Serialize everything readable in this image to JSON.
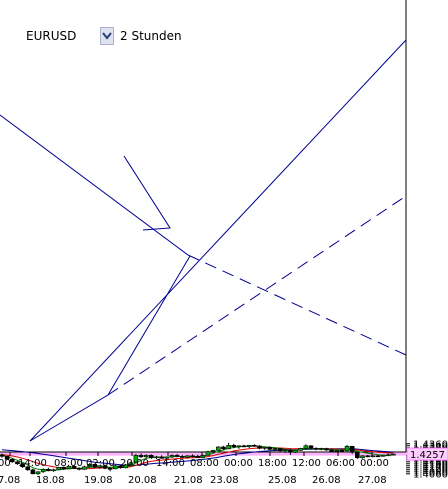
{
  "toolbar": {
    "symbol": "EURUSD",
    "timeframe": "2 Stunden",
    "dropdown_icon": "chevron-down-icon"
  },
  "colors": {
    "bull": "#00aa00",
    "bear": "#000000",
    "ma_fast": "#008000",
    "ma_mid": "#e00000",
    "ma_slow": "#000090",
    "trend": "#000090",
    "price_line": "#ff80ff",
    "price_tag_bg": "#ffccff"
  },
  "chart_data": {
    "type": "candlestick",
    "ylim": [
      1.4048,
      1.4378
    ],
    "grid": false,
    "y_ticks": [
      "1.4360",
      "1.4340",
      "1.4320",
      "1.4300",
      "1.4280",
      "1.4240",
      "1.4220",
      "1.4200",
      "1.4180",
      "1.4160",
      "1.4140",
      "1.4120",
      "1.4100",
      "1.4080",
      "1.4060"
    ],
    "current_price": "1.4257",
    "x_time_labels": [
      "00",
      "14:00",
      "08:00",
      "02:00",
      "20:00",
      "14:00",
      "08:00",
      "00:00",
      "18:00",
      "12:00",
      "06:00",
      "00:00"
    ],
    "x_date_labels": [
      "7.08",
      "18.08",
      "19.08",
      "20.08",
      "21.08",
      "23.08",
      "25.08",
      "26.08",
      "27.08"
    ],
    "candles": [
      [
        1.425,
        1.4262,
        1.422,
        1.4235
      ],
      [
        1.4235,
        1.424,
        1.42,
        1.4205
      ],
      [
        1.4205,
        1.4215,
        1.417,
        1.418
      ],
      [
        1.418,
        1.419,
        1.415,
        1.416
      ],
      [
        1.416,
        1.417,
        1.412,
        1.413
      ],
      [
        1.413,
        1.414,
        1.409,
        1.41
      ],
      [
        1.41,
        1.411,
        1.4055,
        1.406
      ],
      [
        1.406,
        1.4085,
        1.405,
        1.408
      ],
      [
        1.408,
        1.4115,
        1.407,
        1.4105
      ],
      [
        1.4105,
        1.412,
        1.4085,
        1.409
      ],
      [
        1.409,
        1.411,
        1.408,
        1.41
      ],
      [
        1.41,
        1.413,
        1.4095,
        1.4125
      ],
      [
        1.4125,
        1.4135,
        1.41,
        1.411
      ],
      [
        1.411,
        1.414,
        1.4105,
        1.4135
      ],
      [
        1.4135,
        1.415,
        1.411,
        1.4115
      ],
      [
        1.4115,
        1.4125,
        1.4095,
        1.4105
      ],
      [
        1.4105,
        1.414,
        1.41,
        1.413
      ],
      [
        1.413,
        1.4165,
        1.412,
        1.4155
      ],
      [
        1.4155,
        1.416,
        1.4115,
        1.4125
      ],
      [
        1.4125,
        1.4145,
        1.411,
        1.414
      ],
      [
        1.414,
        1.415,
        1.4105,
        1.4115
      ],
      [
        1.4115,
        1.4125,
        1.4085,
        1.411
      ],
      [
        1.411,
        1.415,
        1.4105,
        1.414
      ],
      [
        1.414,
        1.415,
        1.4112,
        1.412
      ],
      [
        1.412,
        1.416,
        1.4115,
        1.415
      ],
      [
        1.415,
        1.418,
        1.414,
        1.417
      ],
      [
        1.417,
        1.426,
        1.4165,
        1.4245
      ],
      [
        1.4245,
        1.4265,
        1.422,
        1.423
      ],
      [
        1.423,
        1.4255,
        1.4215,
        1.4245
      ],
      [
        1.4245,
        1.4255,
        1.421,
        1.422
      ],
      [
        1.422,
        1.424,
        1.4205,
        1.423
      ],
      [
        1.423,
        1.4245,
        1.421,
        1.4215
      ],
      [
        1.4215,
        1.4235,
        1.4208,
        1.4228
      ],
      [
        1.4228,
        1.4255,
        1.422,
        1.4245
      ],
      [
        1.4245,
        1.4258,
        1.4225,
        1.4235
      ],
      [
        1.4235,
        1.425,
        1.4215,
        1.4225
      ],
      [
        1.4225,
        1.4245,
        1.4212,
        1.424
      ],
      [
        1.424,
        1.4255,
        1.423,
        1.4235
      ],
      [
        1.4235,
        1.425,
        1.4218,
        1.4222
      ],
      [
        1.4222,
        1.425,
        1.4215,
        1.4245
      ],
      [
        1.4245,
        1.429,
        1.424,
        1.4282
      ],
      [
        1.4282,
        1.43,
        1.4265,
        1.4295
      ],
      [
        1.4295,
        1.4335,
        1.429,
        1.4328
      ],
      [
        1.4328,
        1.434,
        1.43,
        1.431
      ],
      [
        1.431,
        1.437,
        1.4305,
        1.4345
      ],
      [
        1.4345,
        1.436,
        1.432,
        1.433
      ],
      [
        1.433,
        1.4345,
        1.431,
        1.434
      ],
      [
        1.434,
        1.435,
        1.4325,
        1.4332
      ],
      [
        1.4332,
        1.4348,
        1.4318,
        1.4345
      ],
      [
        1.4345,
        1.4355,
        1.433,
        1.4338
      ],
      [
        1.4338,
        1.4345,
        1.4305,
        1.4315
      ],
      [
        1.4315,
        1.433,
        1.43,
        1.4325
      ],
      [
        1.4325,
        1.4335,
        1.4295,
        1.4305
      ],
      [
        1.4305,
        1.432,
        1.429,
        1.4312
      ],
      [
        1.4312,
        1.4318,
        1.428,
        1.429
      ],
      [
        1.429,
        1.4305,
        1.427,
        1.43
      ],
      [
        1.43,
        1.431,
        1.425,
        1.4275
      ],
      [
        1.4275,
        1.43,
        1.4268,
        1.4295
      ],
      [
        1.4295,
        1.432,
        1.429,
        1.4315
      ],
      [
        1.4315,
        1.4355,
        1.431,
        1.434
      ],
      [
        1.434,
        1.4345,
        1.4305,
        1.4315
      ],
      [
        1.4315,
        1.4325,
        1.4295,
        1.4305
      ],
      [
        1.4305,
        1.432,
        1.4295,
        1.4312
      ],
      [
        1.4312,
        1.432,
        1.429,
        1.4298
      ],
      [
        1.4298,
        1.4312,
        1.428,
        1.4285
      ],
      [
        1.4285,
        1.43,
        1.4278,
        1.4295
      ],
      [
        1.4295,
        1.4305,
        1.4285,
        1.429
      ],
      [
        1.429,
        1.4348,
        1.4285,
        1.4335
      ],
      [
        1.4335,
        1.434,
        1.426,
        1.4275
      ],
      [
        1.4275,
        1.428,
        1.421,
        1.422
      ],
      [
        1.422,
        1.4245,
        1.4212,
        1.424
      ],
      [
        1.424,
        1.4248,
        1.4225,
        1.423
      ],
      [
        1.423,
        1.4245,
        1.4225,
        1.424
      ],
      [
        1.424,
        1.4248,
        1.423,
        1.4235
      ],
      [
        1.4235,
        1.425,
        1.4232,
        1.4245
      ],
      [
        1.4245,
        1.4262,
        1.424,
        1.425
      ],
      [
        1.425,
        1.4262,
        1.4245,
        1.4257
      ]
    ],
    "ma_fast": [
      1.4245,
      1.4232,
      1.4215,
      1.4195,
      1.4175,
      1.415,
      1.412,
      1.4105,
      1.41,
      1.4098,
      1.4097,
      1.41,
      1.4105,
      1.411,
      1.4115,
      1.4115,
      1.4118,
      1.4125,
      1.4128,
      1.4132,
      1.413,
      1.4125,
      1.4128,
      1.4128,
      1.4132,
      1.414,
      1.417,
      1.4195,
      1.4215,
      1.4225,
      1.4228,
      1.4228,
      1.4226,
      1.423,
      1.4233,
      1.4233,
      1.4234,
      1.4236,
      1.4234,
      1.4237,
      1.425,
      1.4265,
      1.4285,
      1.4298,
      1.4315,
      1.4322,
      1.433,
      1.4333,
      1.4337,
      1.4338,
      1.4333,
      1.433,
      1.4325,
      1.432,
      1.4312,
      1.4305,
      1.4298,
      1.4297,
      1.43,
      1.431,
      1.4312,
      1.431,
      1.431,
      1.4307,
      1.4302,
      1.43,
      1.4298,
      1.4305,
      1.43,
      1.4285,
      1.4275,
      1.4265,
      1.4258,
      1.425,
      1.4247,
      1.4248,
      1.4251
    ],
    "ma_mid": [
      1.425,
      1.4245,
      1.4238,
      1.4228,
      1.4215,
      1.42,
      1.4182,
      1.4165,
      1.4152,
      1.414,
      1.413,
      1.4122,
      1.4118,
      1.4115,
      1.4113,
      1.411,
      1.411,
      1.4112,
      1.4115,
      1.4118,
      1.412,
      1.412,
      1.4122,
      1.4123,
      1.4125,
      1.413,
      1.4145,
      1.416,
      1.4175,
      1.4185,
      1.4192,
      1.4197,
      1.4202,
      1.4207,
      1.4212,
      1.4215,
      1.4218,
      1.4221,
      1.4223,
      1.4226,
      1.4233,
      1.4242,
      1.4255,
      1.4265,
      1.4277,
      1.4288,
      1.4297,
      1.4304,
      1.4311,
      1.4316,
      1.4318,
      1.4319,
      1.432,
      1.432,
      1.4318,
      1.4315,
      1.4312,
      1.4311,
      1.4311,
      1.4313,
      1.4313,
      1.4312,
      1.4312,
      1.4311,
      1.4309,
      1.4307,
      1.4305,
      1.4306,
      1.4304,
      1.4298,
      1.4292,
      1.4286,
      1.4281,
      1.4276,
      1.4272,
      1.4269,
      1.4267
    ],
    "ma_slow": [
      1.43,
      1.4296,
      1.4292,
      1.4287,
      1.4282,
      1.4276,
      1.427,
      1.4263,
      1.4256,
      1.4248,
      1.424,
      1.4232,
      1.4224,
      1.4216,
      1.4208,
      1.42,
      1.4192,
      1.4184,
      1.4176,
      1.417,
      1.4165,
      1.416,
      1.4155,
      1.415,
      1.4145,
      1.4143,
      1.4145,
      1.415,
      1.4155,
      1.416,
      1.4165,
      1.4168,
      1.4172,
      1.4176,
      1.418,
      1.4184,
      1.4188,
      1.4193,
      1.4198,
      1.4203,
      1.421,
      1.4218,
      1.4226,
      1.4235,
      1.4244,
      1.4252,
      1.426,
      1.4266,
      1.4272,
      1.4278,
      1.4283,
      1.4287,
      1.429,
      1.4293,
      1.4295,
      1.4297,
      1.4299,
      1.43,
      1.4302,
      1.4304,
      1.4306,
      1.4307,
      1.4308,
      1.4309,
      1.431,
      1.431,
      1.431,
      1.4311,
      1.431,
      1.4307,
      1.4302,
      1.4297,
      1.4292,
      1.4288,
      1.4284,
      1.4281,
      1.4278
    ]
  }
}
